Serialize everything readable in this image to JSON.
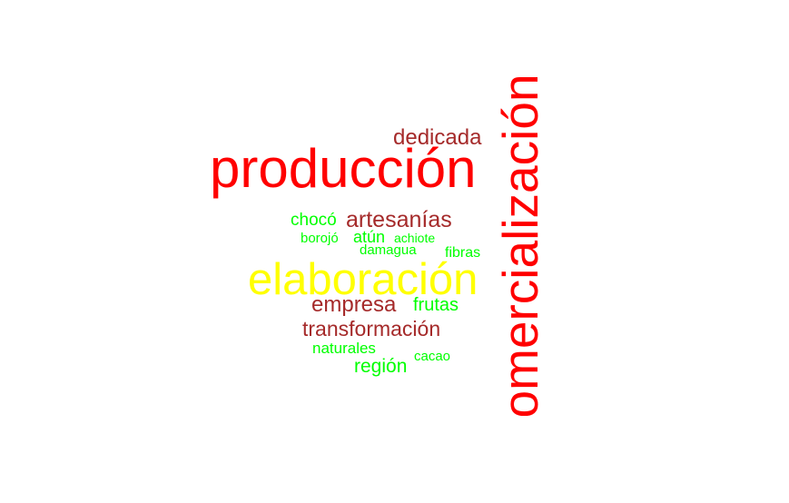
{
  "words": {
    "comercializacion": {
      "text": "comercialización",
      "color": "#ff0000"
    },
    "produccion": {
      "text": "producción",
      "color": "#ff0000"
    },
    "dedicada": {
      "text": "dedicada",
      "color": "#a52a2a"
    },
    "choco": {
      "text": "chocó",
      "color": "#00ff00"
    },
    "artesanias": {
      "text": "artesanías",
      "color": "#a52a2a"
    },
    "borojo": {
      "text": "borojó",
      "color": "#00ff00"
    },
    "atun": {
      "text": "atún",
      "color": "#00ff00"
    },
    "achiote": {
      "text": "achiote",
      "color": "#00ff00"
    },
    "damagua": {
      "text": "damagua",
      "color": "#00ff00"
    },
    "fibras": {
      "text": "fibras",
      "color": "#00ff00"
    },
    "elaboracion": {
      "text": "elaboración",
      "color": "#ffff00"
    },
    "empresa": {
      "text": "empresa",
      "color": "#a52a2a"
    },
    "frutas": {
      "text": "frutas",
      "color": "#00ff00"
    },
    "transformacion": {
      "text": "transformación",
      "color": "#a52a2a"
    },
    "naturales": {
      "text": "naturales",
      "color": "#00ff00"
    },
    "region": {
      "text": "región",
      "color": "#00ff00"
    },
    "cacao": {
      "text": "cacao",
      "color": "#00ff00"
    }
  }
}
